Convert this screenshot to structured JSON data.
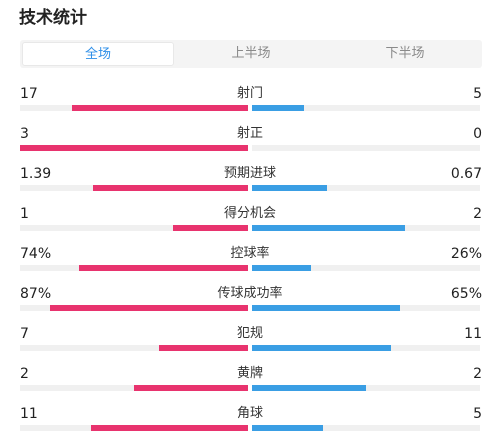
{
  "title": "技术统计",
  "tabs": [
    {
      "label": "全场",
      "active": true
    },
    {
      "label": "上半场",
      "active": false
    },
    {
      "label": "下半场",
      "active": false
    }
  ],
  "colors": {
    "home": "#e8336e",
    "away": "#3a9ee4",
    "accent": "#2f8fe8"
  },
  "stats": [
    {
      "label": "射门",
      "home": "17",
      "away": "5",
      "home_ratio": 0.77,
      "away_ratio": 0.23
    },
    {
      "label": "射正",
      "home": "3",
      "away": "0",
      "home_ratio": 1.0,
      "away_ratio": 0.0
    },
    {
      "label": "预期进球",
      "home": "1.39",
      "away": "0.67",
      "home_ratio": 0.68,
      "away_ratio": 0.33
    },
    {
      "label": "得分机会",
      "home": "1",
      "away": "2",
      "home_ratio": 0.33,
      "away_ratio": 0.67
    },
    {
      "label": "控球率",
      "home": "74%",
      "away": "26%",
      "home_ratio": 0.74,
      "away_ratio": 0.26
    },
    {
      "label": "传球成功率",
      "home": "87%",
      "away": "65%",
      "home_ratio": 0.87,
      "away_ratio": 0.65
    },
    {
      "label": "犯规",
      "home": "7",
      "away": "11",
      "home_ratio": 0.39,
      "away_ratio": 0.61
    },
    {
      "label": "黄牌",
      "home": "2",
      "away": "2",
      "home_ratio": 0.5,
      "away_ratio": 0.5
    },
    {
      "label": "角球",
      "home": "11",
      "away": "5",
      "home_ratio": 0.69,
      "away_ratio": 0.31
    }
  ]
}
